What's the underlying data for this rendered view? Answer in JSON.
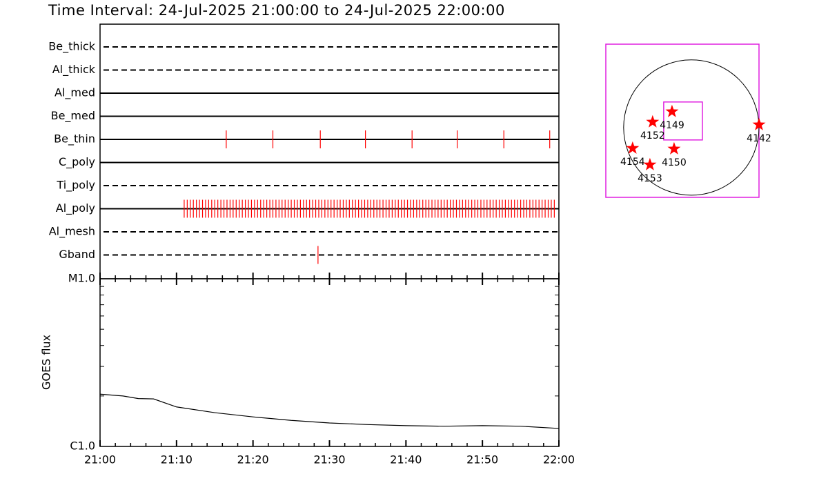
{
  "chart_data": [
    {
      "type": "timeline",
      "title": "Time Interval: 24-Jul-2025 21:00:00 to 24-Jul-2025 22:00:00",
      "categories": [
        "Be_thick",
        "Al_thick",
        "Al_med",
        "Be_med",
        "Be_thin",
        "C_poly",
        "Ti_poly",
        "Al_poly",
        "Al_mesh",
        "Gband"
      ],
      "styles": [
        "dashed",
        "dashed",
        "solid",
        "solid",
        "solid",
        "solid",
        "dashed",
        "solid",
        "dashed",
        "dashed"
      ],
      "color": "#ff0000",
      "xlim": [
        0,
        60
      ],
      "events": [
        [],
        [],
        [],
        [],
        [
          16.5,
          22.6,
          28.8,
          34.7,
          40.8,
          46.7,
          52.8,
          58.8
        ],
        [],
        [],
        [
          11,
          11.4,
          11.8,
          12.2,
          12.6,
          13,
          13.4,
          13.8,
          14.2,
          14.6,
          15,
          15.4,
          15.8,
          16.2,
          16.6,
          17,
          17.4,
          17.8,
          18.2,
          18.6,
          19,
          19.4,
          19.8,
          20.2,
          20.6,
          21,
          21.4,
          21.8,
          22.2,
          22.6,
          23,
          23.4,
          23.8,
          24.2,
          24.6,
          25,
          25.4,
          25.8,
          26.2,
          26.6,
          27,
          27.4,
          27.8,
          28.2,
          28.6,
          29,
          29.4,
          29.8,
          30.2,
          30.6,
          31,
          31.4,
          31.8,
          32.2,
          32.6,
          33,
          33.4,
          33.8,
          34.2,
          34.6,
          35,
          35.4,
          35.8,
          36.2,
          36.6,
          37,
          37.4,
          37.8,
          38.2,
          38.6,
          39,
          39.4,
          39.8,
          40.2,
          40.6,
          41,
          41.4,
          41.8,
          42.2,
          42.6,
          43,
          43.4,
          43.8,
          44.2,
          44.6,
          45,
          45.4,
          45.8,
          46.2,
          46.6,
          47,
          47.4,
          47.8,
          48.2,
          48.6,
          49,
          49.4,
          49.8,
          50.2,
          50.6,
          51,
          51.4,
          51.8,
          52.2,
          52.6,
          53,
          53.4,
          53.8,
          54.2,
          54.6,
          55,
          55.4,
          55.8,
          56.2,
          56.6,
          57,
          57.4,
          57.8,
          58.2,
          58.6,
          59,
          59.4
        ],
        [],
        [
          28.5
        ]
      ]
    },
    {
      "type": "line",
      "y_label": "GOES flux",
      "x": [
        0,
        3,
        5,
        7,
        10,
        15,
        20,
        25,
        30,
        35,
        40,
        45,
        50,
        55,
        60
      ],
      "values": [
        2.05e-06,
        2e-06,
        1.93e-06,
        1.92e-06,
        1.72e-06,
        1.59e-06,
        1.5e-06,
        1.43e-06,
        1.38e-06,
        1.35e-06,
        1.33e-06,
        1.32e-06,
        1.33e-06,
        1.32e-06,
        1.28e-06
      ],
      "color": "#000000",
      "log_scale": true,
      "xlim": [
        0,
        60
      ],
      "xticks": [
        {
          "value": 0,
          "label": "21:00"
        },
        {
          "value": 10,
          "label": "21:10"
        },
        {
          "value": 20,
          "label": "21:20"
        },
        {
          "value": 30,
          "label": "21:30"
        },
        {
          "value": 40,
          "label": "21:40"
        },
        {
          "value": 50,
          "label": "21:50"
        },
        {
          "value": 60,
          "label": "22:00"
        }
      ],
      "xminorticks": [
        2,
        4,
        6,
        8,
        12,
        14,
        16,
        18,
        22,
        24,
        26,
        28,
        32,
        34,
        36,
        38,
        42,
        44,
        46,
        48,
        52,
        54,
        56,
        58
      ],
      "ylim": [
        1e-06,
        1e-05
      ],
      "yticks": [
        {
          "value": 1e-06,
          "label": "C1.0"
        },
        {
          "value": 1e-05,
          "label": "M1.0"
        }
      ],
      "yminorticks": [
        2e-06,
        3e-06,
        4e-06,
        5e-06,
        6e-06,
        7e-06,
        8e-06,
        9e-06
      ]
    },
    {
      "type": "scatter",
      "labels": [
        "4149",
        "4152",
        "4142",
        "4154",
        "4150",
        "4153"
      ],
      "x": [
        -271,
        -543,
        950,
        -824,
        -242,
        -581
      ],
      "y": [
        223,
        78,
        39,
        -291,
        -300,
        -523
      ],
      "color": "#ff0000",
      "frame_color": "#e020e0",
      "xlim": [
        -1200,
        950
      ],
      "ylim": [
        -980,
        1170
      ],
      "solar_radius": 950,
      "fov": {
        "xc": -116,
        "yc": 92,
        "width": 543,
        "height": 533
      }
    }
  ]
}
